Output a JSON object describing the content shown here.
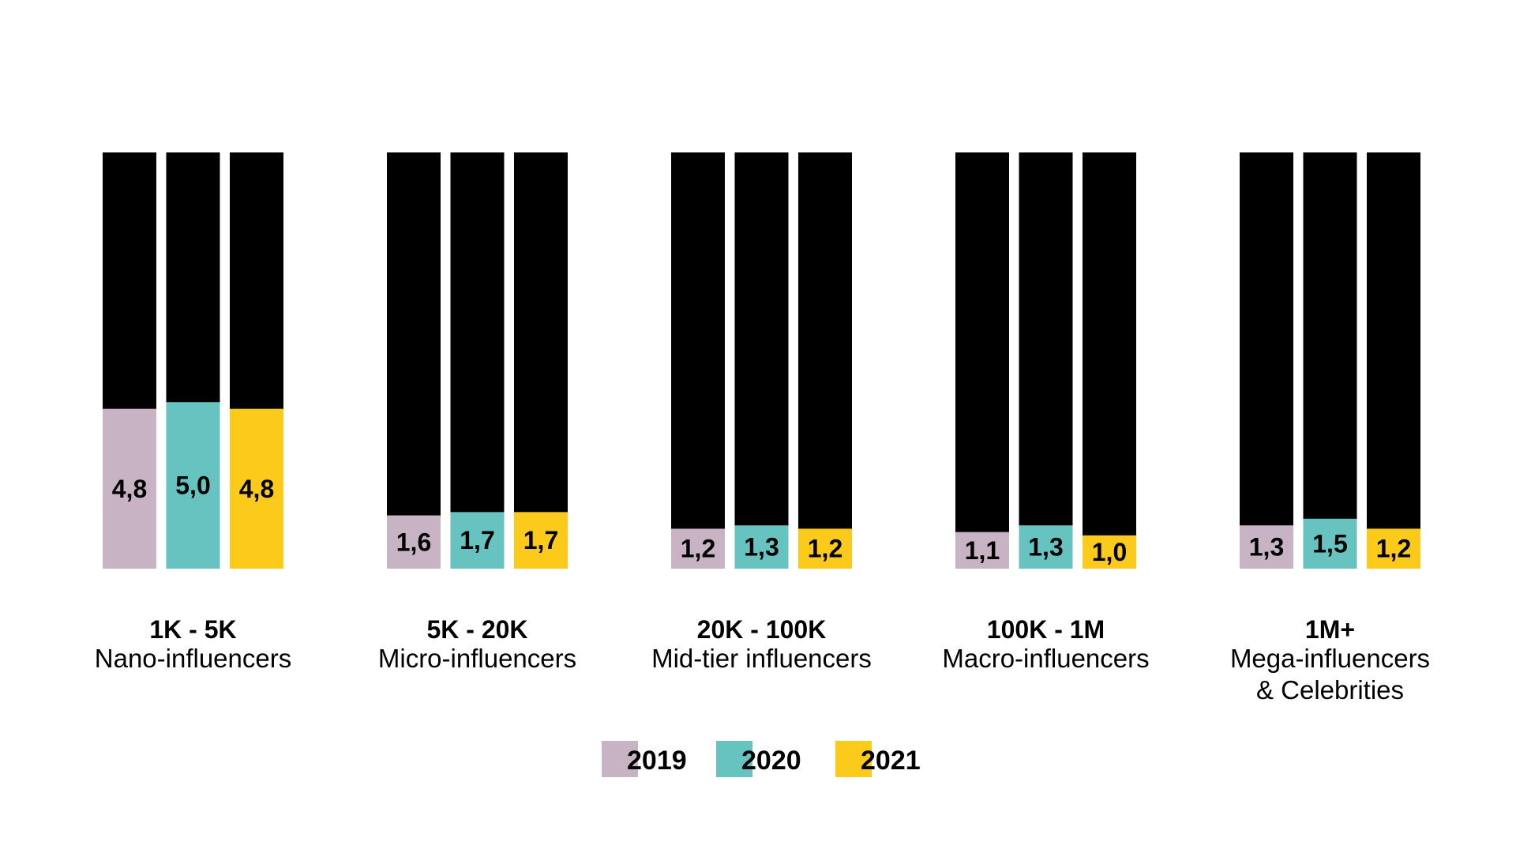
{
  "chart_data": {
    "type": "bar",
    "title": "",
    "xlabel": "",
    "ylabel": "",
    "ylim": [
      0,
      12.5
    ],
    "grid": false,
    "legend_position": "bottom-center",
    "background_bar_color": "#000000",
    "categories": [
      {
        "range": "1K - 5K",
        "name": [
          "Nano-influencers"
        ]
      },
      {
        "range": "5K - 20K",
        "name": [
          "Micro-influencers"
        ]
      },
      {
        "range": "20K - 100K",
        "name": [
          "Mid-tier influencers"
        ]
      },
      {
        "range": "100K - 1M",
        "name": [
          "Macro-influencers"
        ]
      },
      {
        "range": "1M+",
        "name": [
          "Mega-influencers",
          "& Celebrities"
        ]
      }
    ],
    "series": [
      {
        "name": "2019",
        "color": "#C8B3C5",
        "values": [
          4.8,
          1.6,
          1.2,
          1.1,
          1.3
        ],
        "labels": [
          "4,8",
          "1,6",
          "1,2",
          "1,1",
          "1,3"
        ]
      },
      {
        "name": "2020",
        "color": "#67C3BF",
        "values": [
          5.0,
          1.7,
          1.3,
          1.3,
          1.5
        ],
        "labels": [
          "5,0",
          "1,7",
          "1,3",
          "1,3",
          "1,5"
        ]
      },
      {
        "name": "2021",
        "color": "#FBCA1B",
        "values": [
          4.8,
          1.7,
          1.2,
          1.0,
          1.2
        ],
        "labels": [
          "4,8",
          "1,7",
          "1,2",
          "1,0",
          "1,2"
        ]
      }
    ]
  }
}
